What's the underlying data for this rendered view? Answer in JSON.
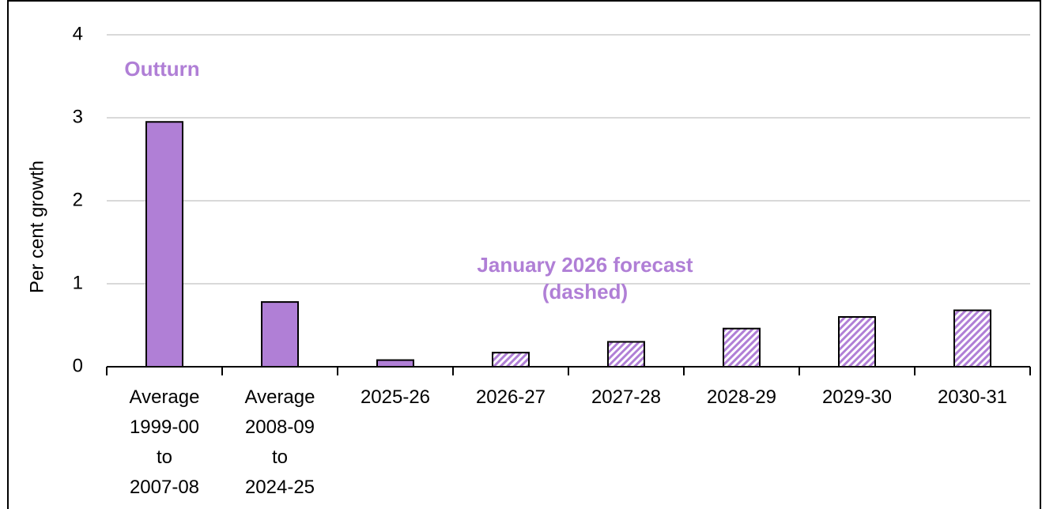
{
  "chart_data": {
    "type": "bar",
    "y_axis_label": "Per cent growth",
    "categories": [
      "Average 1999-00 to 2007-08",
      "Average 2008-09 to 2024-25",
      "2025-26",
      "2026-27",
      "2027-28",
      "2028-29",
      "2029-30",
      "2030-31"
    ],
    "values": [
      2.95,
      0.78,
      0.08,
      0.17,
      0.3,
      0.46,
      0.6,
      0.68
    ],
    "hatched": [
      false,
      false,
      false,
      true,
      true,
      true,
      true,
      true
    ],
    "color": "#b07fd6",
    "ylim": [
      0,
      4
    ],
    "yticks": [
      0,
      1,
      2,
      3,
      4
    ],
    "grid": true,
    "annotations": [
      "Outturn",
      "January 2026 forecast (dashed)"
    ]
  }
}
